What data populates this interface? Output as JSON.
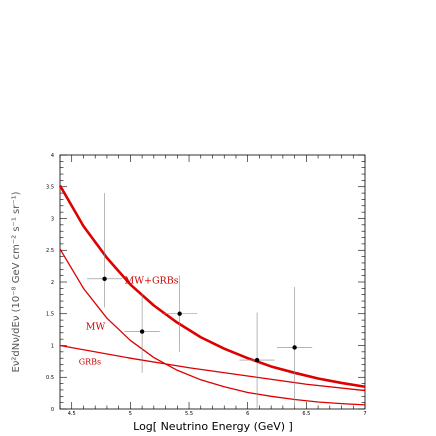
{
  "chart_data": {
    "type": "scatter",
    "title": "",
    "xlabel": "Log[ Neutrino Energy (GeV) ]",
    "ylabel": "Eν²dNν/dEν (10⁻⁸ GeV cm⁻² s⁻¹ sr⁻¹)",
    "xlim": [
      4.4,
      7.0
    ],
    "ylim": [
      0,
      4
    ],
    "x_ticks": [
      "4.5",
      "5",
      "5.5",
      "6",
      "6.5",
      "7"
    ],
    "y_ticks": [
      "0",
      "0.5",
      "1",
      "1.5",
      "2",
      "2.5",
      "3",
      "3.5",
      "4"
    ],
    "grid": false,
    "points": [
      {
        "x": 4.78,
        "y": 2.05,
        "xerr": 0.15,
        "yerr_low": 0.45,
        "yerr_high": 1.35
      },
      {
        "x": 5.1,
        "y": 1.22,
        "xerr": 0.15,
        "yerr_low": 0.65,
        "yerr_high": 0.6
      },
      {
        "x": 5.42,
        "y": 1.5,
        "xerr": 0.15,
        "yerr_low": 0.6,
        "yerr_high": 0.6
      },
      {
        "x": 6.08,
        "y": 0.77,
        "xerr": 0.15,
        "yerr_low": 0.75,
        "yerr_high": 0.75
      },
      {
        "x": 6.4,
        "y": 0.97,
        "xerr": 0.15,
        "yerr_low": 0.95,
        "yerr_high": 0.95
      }
    ],
    "series": [
      {
        "name": "MW+GRBs",
        "color": "#dd0000",
        "width": "thick",
        "x": [
          4.4,
          4.6,
          4.8,
          5.0,
          5.2,
          5.4,
          5.6,
          5.8,
          6.0,
          6.2,
          6.4,
          6.6,
          6.8,
          7.0
        ],
        "y": [
          3.52,
          2.88,
          2.38,
          1.96,
          1.63,
          1.36,
          1.13,
          0.95,
          0.8,
          0.67,
          0.57,
          0.48,
          0.41,
          0.35
        ]
      },
      {
        "name": "MW",
        "color": "#dd0000",
        "width": "thin",
        "x": [
          4.4,
          4.6,
          4.8,
          5.0,
          5.2,
          5.4,
          5.6,
          5.8,
          6.0,
          6.2,
          6.4,
          6.6,
          6.8,
          7.0
        ],
        "y": [
          2.52,
          1.9,
          1.43,
          1.08,
          0.81,
          0.61,
          0.46,
          0.35,
          0.26,
          0.2,
          0.15,
          0.11,
          0.085,
          0.065
        ]
      },
      {
        "name": "GRBs",
        "color": "#dd0000",
        "width": "thin",
        "x": [
          4.4,
          5.0,
          5.5,
          6.0,
          6.5,
          7.0
        ],
        "y": [
          1.0,
          0.8,
          0.65,
          0.52,
          0.39,
          0.29
        ]
      }
    ],
    "annotations": [
      {
        "text": "MW+GRBs",
        "x": 4.95,
        "y": 1.98
      },
      {
        "text": "MW",
        "x": 4.62,
        "y": 1.25
      },
      {
        "text": "GRBs",
        "x": 4.56,
        "y": 0.7
      }
    ]
  }
}
